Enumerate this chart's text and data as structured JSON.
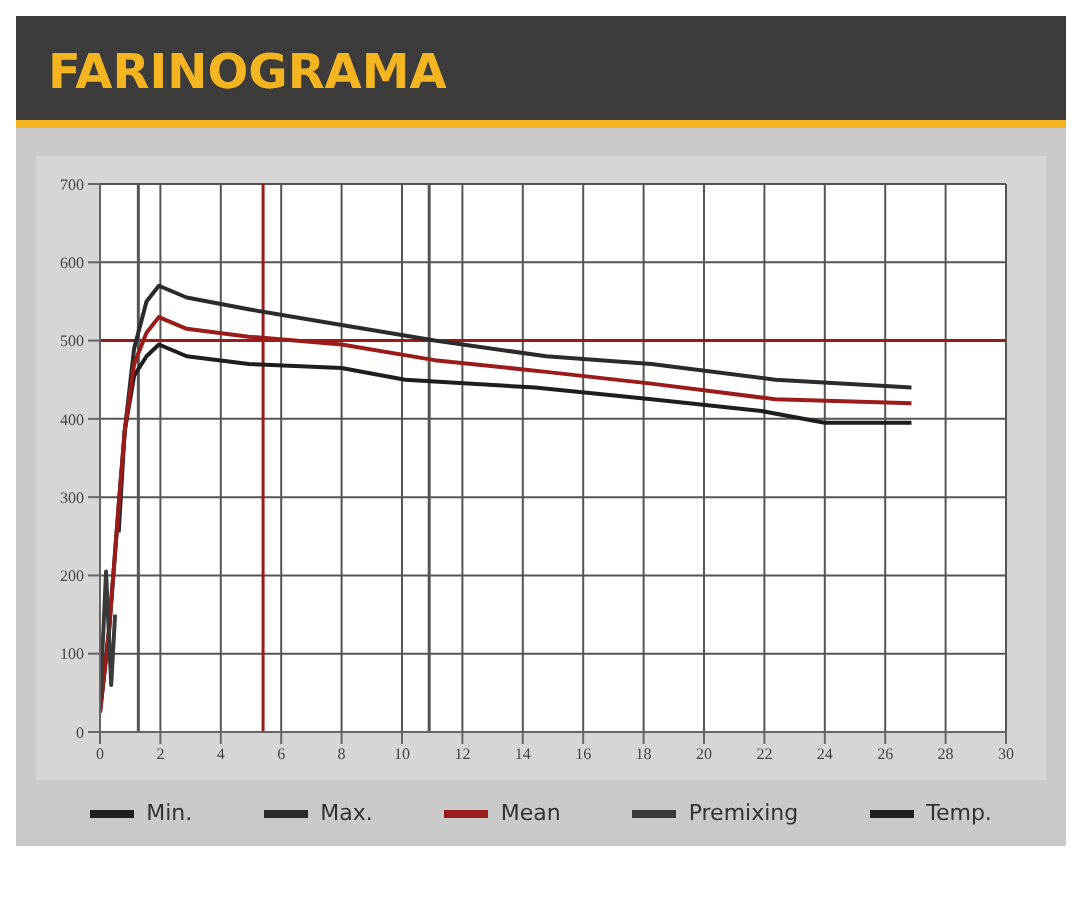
{
  "chart_data": {
    "type": "line",
    "title": "FARINOGRAMA",
    "xlim": [
      0,
      30
    ],
    "xticks": [
      0,
      2,
      4,
      6,
      8,
      10,
      12,
      14,
      16,
      18,
      20,
      22,
      24,
      26,
      28,
      30
    ],
    "ylim": [
      0,
      700
    ],
    "yticks": [
      0,
      100,
      200,
      300,
      400,
      500,
      600,
      700
    ],
    "grid": true,
    "legend": "bottom",
    "marker": "none",
    "line_style": "solid",
    "series": [
      {
        "name": "Min.",
        "color": "#1e1e1e",
        "x": [
          0,
          0.3,
          0.62,
          0.82,
          1.13,
          1.54,
          1.95,
          2.87,
          4.92,
          8.0,
          10.1,
          14.4,
          18.26,
          21.9,
          24.0,
          26.87
        ],
        "values": [
          25,
          130,
          290,
          385,
          455,
          480,
          495,
          480,
          470,
          465,
          450,
          440,
          425,
          410,
          395,
          395
        ]
      },
      {
        "name": "Max.",
        "color": "#2b2b2b",
        "x": [
          0.62,
          0.82,
          1.13,
          1.54,
          1.95,
          2.87,
          4.92,
          8.0,
          11.08,
          14.77,
          18.26,
          22.36,
          26.87
        ],
        "values": [
          255,
          385,
          490,
          550,
          570,
          555,
          540,
          520,
          500,
          480,
          470,
          450,
          440
        ]
      },
      {
        "name": "Mean",
        "color": "#9b1b1b",
        "x": [
          0,
          0.3,
          0.62,
          0.82,
          1.13,
          1.54,
          1.95,
          2.87,
          4.92,
          8.0,
          11.08,
          14.77,
          18.26,
          22.36,
          26.87
        ],
        "values": [
          25,
          130,
          290,
          385,
          470,
          510,
          530,
          515,
          505,
          495,
          475,
          460,
          445,
          425,
          420
        ]
      },
      {
        "name": "Premixing",
        "color": "#3a3a3a",
        "x": [
          0,
          0.2,
          0.37,
          0.5
        ],
        "values": [
          35,
          205,
          60,
          150
        ]
      },
      {
        "name": "Temp.",
        "color": "#1e1e1e"
      }
    ],
    "ref_lines": [
      {
        "axis": "y",
        "value": 500,
        "color": "#9b1b1b"
      },
      {
        "axis": "x",
        "value": 1.27,
        "color": "#555555"
      },
      {
        "axis": "x",
        "value": 5.4,
        "color": "#9b1b1b"
      },
      {
        "axis": "x",
        "value": 10.9,
        "color": "#555555"
      }
    ]
  }
}
